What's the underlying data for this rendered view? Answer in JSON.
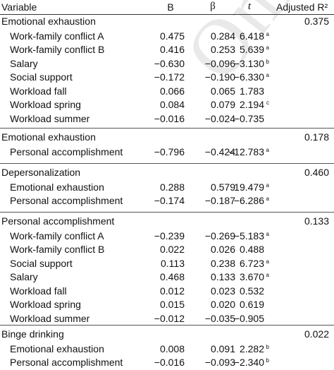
{
  "watermark": "Onli",
  "headers": {
    "variable": "Variable",
    "b": "B",
    "beta": "β",
    "t": "t",
    "adj": "Adjusted R²"
  },
  "groups": [
    {
      "title": "Emotional exhaustion",
      "adj": "0.375",
      "rows": [
        {
          "label": "Work-family conflict A",
          "b": "0.475",
          "beta": "0.284",
          "t": "6.418",
          "sup": "a"
        },
        {
          "label": "Work-family conflict B",
          "b": "0.416",
          "beta": "0.253",
          "t": "5.639",
          "sup": "a"
        },
        {
          "label": "Salary",
          "b": "−0.630",
          "beta": "−0.096",
          "t": "−3.130",
          "sup": "b"
        },
        {
          "label": "Social support",
          "b": "−0.172",
          "beta": "−0.190",
          "t": "−6.330",
          "sup": "a"
        },
        {
          "label": "Workload fall",
          "b": "0.066",
          "beta": "0.065",
          "t": "1.783",
          "sup": ""
        },
        {
          "label": "Workload spring",
          "b": "0.084",
          "beta": "0.079",
          "t": "2.194",
          "sup": "c"
        },
        {
          "label": "Workload summer",
          "b": "−0.016",
          "beta": "−0.024",
          "t": "−0.735",
          "sup": ""
        }
      ]
    },
    {
      "title": "Emotional exhaustion",
      "adj": "0.178",
      "rows": [
        {
          "label": "Personal accomplishment",
          "b": "−0.796",
          "beta": "−0.424",
          "t": "−12.783",
          "sup": "a"
        }
      ]
    },
    {
      "title": "Depersonalization",
      "adj": "0.460",
      "rows": [
        {
          "label": "Emotional exhaustion",
          "b": "0.288",
          "beta": "0.579",
          "t": "19.479",
          "sup": "a"
        },
        {
          "label": "Personal accomplishment",
          "b": "−0.174",
          "beta": "−0.187",
          "t": "−6.286",
          "sup": "a"
        }
      ]
    },
    {
      "title": "Personal accomplishment",
      "adj": "0.133",
      "rows": [
        {
          "label": "Work-family conflict A",
          "b": "−0.239",
          "beta": "−0.269",
          "t": "−5.183",
          "sup": "a"
        },
        {
          "label": "Work-family conflict B",
          "b": "0.022",
          "beta": "0.026",
          "t": "0.488",
          "sup": ""
        },
        {
          "label": "Social support",
          "b": "0.113",
          "beta": "0.238",
          "t": "6.723",
          "sup": "a"
        },
        {
          "label": "Salary",
          "b": "0.468",
          "beta": "0.133",
          "t": "3.670",
          "sup": "a"
        },
        {
          "label": "Workload fall",
          "b": "0.012",
          "beta": "0.023",
          "t": "0.532",
          "sup": ""
        },
        {
          "label": "Workload spring",
          "b": "0.015",
          "beta": "0.020",
          "t": "0.619",
          "sup": ""
        },
        {
          "label": "Workload summer",
          "b": "−0.012",
          "beta": "−0.035",
          "t": "−0.905",
          "sup": ""
        }
      ]
    },
    {
      "title": "Binge drinking",
      "adj": "0.022",
      "rows": [
        {
          "label": "Emotional exhaustion",
          "b": "0.008",
          "beta": "0.091",
          "t": "2.282",
          "sup": "b"
        },
        {
          "label": "Personal accomplishment",
          "b": "−0.016",
          "beta": "−0.093",
          "t": "−2.340",
          "sup": "b"
        }
      ]
    }
  ]
}
